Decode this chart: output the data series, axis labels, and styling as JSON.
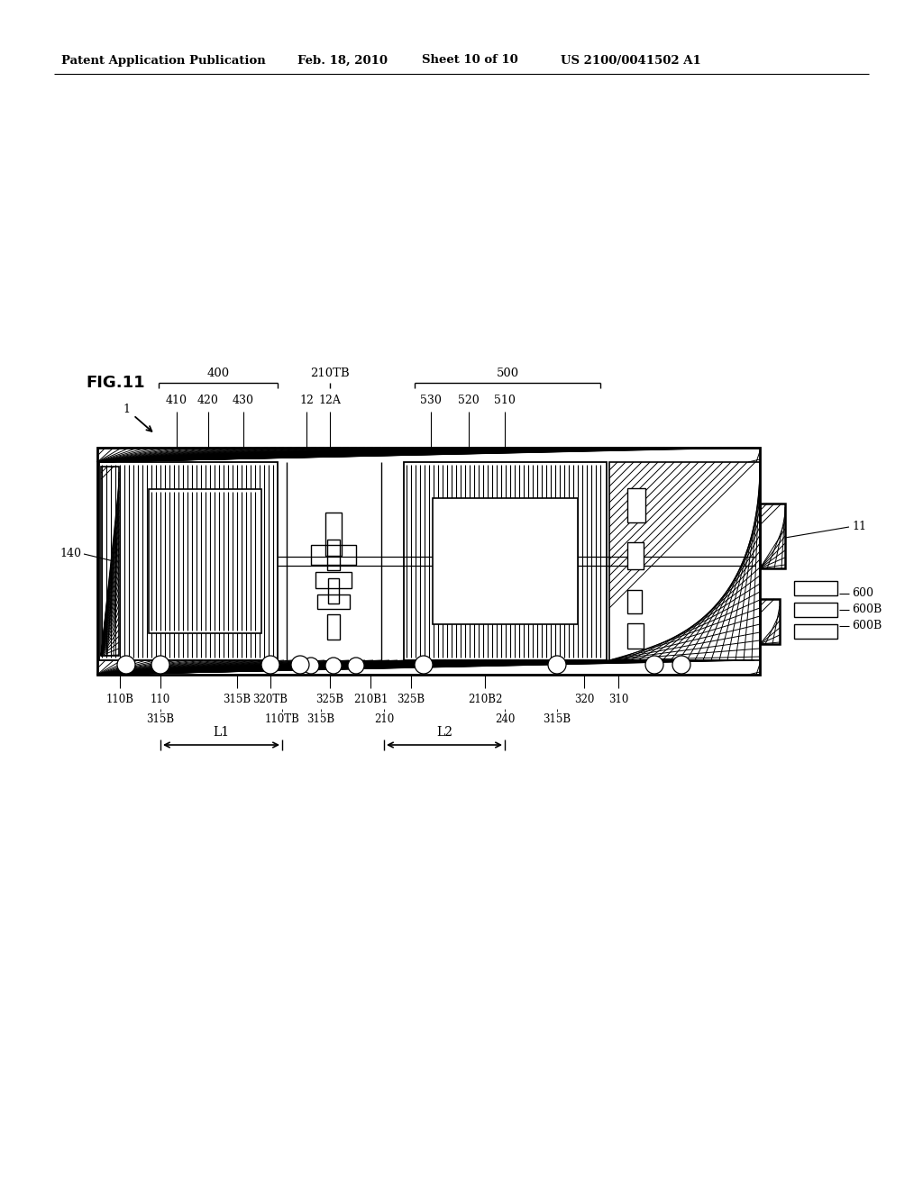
{
  "background_color": "#ffffff",
  "page_width": 10.24,
  "page_height": 13.2,
  "header_text1": "Patent Application Publication",
  "header_text2": "Feb. 18, 2010",
  "header_text3": "Sheet 10 of 10",
  "header_text4": "US 2100/0041502 A1",
  "fig_label": "FIG.11",
  "fig_number": "1"
}
